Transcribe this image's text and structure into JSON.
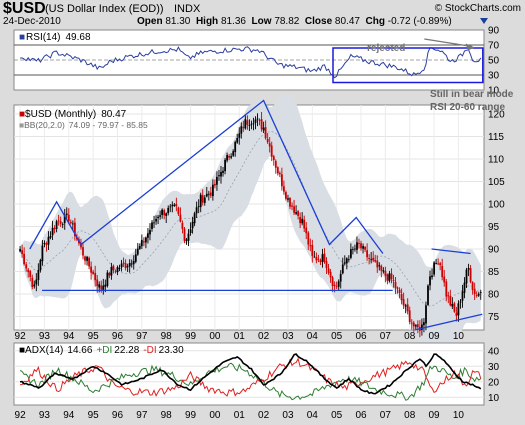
{
  "header": {
    "symbol": "$USD",
    "name": "(US Dollar Index (EOD))",
    "exchange": "INDX",
    "date": "24-Dec-2010",
    "open_label": "Open",
    "open": "81.30",
    "high_label": "High",
    "high": "81.36",
    "low_label": "Low",
    "low": "78.82",
    "close_label": "Close",
    "close": "80.47",
    "chg_label": "Chg",
    "chg": "-0.72 (-0.89%)",
    "watermark": "© StockCharts.com"
  },
  "colors": {
    "down": "#cc0000",
    "up": "#000000",
    "trend": "#1a3fd6",
    "rsi": "#2b3fa0",
    "adx": "#000000",
    "pdi": "#2e7d32",
    "mdi": "#e02020",
    "band": "#cfd6e0"
  },
  "rsi": {
    "label": "RSI(14)",
    "value": "49.68",
    "scale": [
      "90",
      "70",
      "50",
      "30",
      "10"
    ],
    "annotations": {
      "rejected": "rejected",
      "bear_mode_1": "Still in bear mode",
      "bear_mode_2": "RSI 20-60 range"
    }
  },
  "price": {
    "label": "$USD (Monthly)",
    "value": "80.47",
    "bb_label": "BB(20,2.0)",
    "bb_values": "74.09 - 79.97 - 85.85",
    "scale": [
      "120",
      "115",
      "110",
      "105",
      "100",
      "95",
      "90",
      "85",
      "80",
      "75"
    ]
  },
  "adx": {
    "label": "ADX(14)",
    "value": "14.66",
    "pdi_label": "+DI",
    "pdi_value": "22.28",
    "mdi_label": "-DI",
    "mdi_value": "23.30",
    "scale": [
      "40",
      "30",
      "20",
      "10"
    ]
  },
  "xaxis": {
    "years": [
      "92",
      "93",
      "94",
      "95",
      "96",
      "97",
      "98",
      "99",
      "00",
      "01",
      "02",
      "03",
      "04",
      "05",
      "06",
      "07",
      "08",
      "09",
      "10"
    ]
  },
  "chart_data": {
    "type": "candlestick",
    "title": "$USD (US Dollar Index (EOD)) INDX",
    "x": [
      "1992",
      "1993",
      "1994",
      "1995",
      "1996",
      "1997",
      "1998",
      "1999",
      "2000",
      "2001",
      "2002",
      "2003",
      "2004",
      "2005",
      "2006",
      "2007",
      "2008",
      "2009",
      "2010"
    ],
    "price_anchors": [
      [
        1992.0,
        90
      ],
      [
        1992.6,
        81
      ],
      [
        1992.9,
        90
      ],
      [
        1993.5,
        96
      ],
      [
        1994.0,
        97
      ],
      [
        1994.5,
        90
      ],
      [
        1995.3,
        81
      ],
      [
        1995.7,
        85
      ],
      [
        1996.5,
        87
      ],
      [
        1997.0,
        91
      ],
      [
        1997.7,
        98
      ],
      [
        1998.4,
        99
      ],
      [
        1998.8,
        92
      ],
      [
        1999.4,
        101
      ],
      [
        1999.9,
        103
      ],
      [
        2000.4,
        109
      ],
      [
        2000.9,
        114
      ],
      [
        2001.2,
        118
      ],
      [
        2001.6,
        119
      ],
      [
        2002.0,
        117
      ],
      [
        2002.6,
        107
      ],
      [
        2003.0,
        101
      ],
      [
        2003.6,
        96
      ],
      [
        2004.0,
        88
      ],
      [
        2004.5,
        88
      ],
      [
        2004.95,
        81
      ],
      [
        2005.4,
        88
      ],
      [
        2005.9,
        91
      ],
      [
        2006.3,
        88
      ],
      [
        2006.8,
        85
      ],
      [
        2007.3,
        83
      ],
      [
        2007.8,
        77
      ],
      [
        2008.25,
        72
      ],
      [
        2008.55,
        73
      ],
      [
        2008.8,
        84
      ],
      [
        2009.2,
        88
      ],
      [
        2009.5,
        80
      ],
      [
        2009.9,
        75
      ],
      [
        2010.4,
        86
      ],
      [
        2010.65,
        80
      ],
      [
        2010.98,
        80.47
      ]
    ],
    "bollinger_bands": {
      "period": 20,
      "stddev": 2.0,
      "lower": 74.09,
      "middle": 79.97,
      "upper": 85.85
    },
    "trendlines_price": [
      {
        "points": [
          [
            1992.4,
            90
          ],
          [
            1993.5,
            100.5
          ],
          [
            1994.5,
            91
          ],
          [
            2002.0,
            123
          ],
          [
            2004.7,
            91
          ],
          [
            2005.8,
            97
          ],
          [
            2006.9,
            89
          ]
        ]
      },
      {
        "points": [
          [
            1992.9,
            80.8
          ],
          [
            2007.3,
            80.8
          ]
        ]
      },
      {
        "points": [
          [
            2008.2,
            72
          ],
          [
            2010.98,
            75.5
          ]
        ]
      },
      {
        "points": [
          [
            2008.9,
            90
          ],
          [
            2010.5,
            89
          ]
        ]
      }
    ],
    "rsi_anchors": [
      [
        1992.0,
        55
      ],
      [
        1992.7,
        48
      ],
      [
        1993.5,
        60
      ],
      [
        1994.5,
        50
      ],
      [
        1995.3,
        38
      ],
      [
        1995.7,
        48
      ],
      [
        1996.5,
        55
      ],
      [
        1997.7,
        62
      ],
      [
        1998.5,
        64
      ],
      [
        1998.9,
        52
      ],
      [
        1999.5,
        60
      ],
      [
        2000.4,
        63
      ],
      [
        2001.2,
        65
      ],
      [
        2001.8,
        63
      ],
      [
        2002.6,
        44
      ],
      [
        2003.4,
        40
      ],
      [
        2004.0,
        35
      ],
      [
        2004.5,
        42
      ],
      [
        2004.95,
        28
      ],
      [
        2005.6,
        55
      ],
      [
        2006.3,
        48
      ],
      [
        2006.8,
        45
      ],
      [
        2007.5,
        40
      ],
      [
        2008.2,
        30
      ],
      [
        2008.6,
        40
      ],
      [
        2008.85,
        68
      ],
      [
        2009.3,
        62
      ],
      [
        2009.7,
        48
      ],
      [
        2010.1,
        55
      ],
      [
        2010.4,
        68
      ],
      [
        2010.6,
        50
      ],
      [
        2010.98,
        49.68
      ]
    ],
    "rsi_lines": {
      "upper": 70,
      "lower": 30
    },
    "adx_anchors": [
      [
        1992.0,
        20
      ],
      [
        1992.8,
        16
      ],
      [
        1993.4,
        25
      ],
      [
        1994.2,
        22
      ],
      [
        1995.0,
        30
      ],
      [
        1995.5,
        26
      ],
      [
        1996.2,
        18
      ],
      [
        1997.0,
        22
      ],
      [
        1997.8,
        28
      ],
      [
        1998.5,
        18
      ],
      [
        1999.0,
        15
      ],
      [
        1999.5,
        22
      ],
      [
        2000.3,
        32
      ],
      [
        2000.9,
        36
      ],
      [
        2001.5,
        28
      ],
      [
        2002.0,
        18
      ],
      [
        2002.7,
        25
      ],
      [
        2003.3,
        38
      ],
      [
        2003.8,
        33
      ],
      [
        2004.5,
        22
      ],
      [
        2005.0,
        16
      ],
      [
        2005.5,
        22
      ],
      [
        2006.0,
        15
      ],
      [
        2006.5,
        12
      ],
      [
        2007.2,
        18
      ],
      [
        2007.9,
        28
      ],
      [
        2008.4,
        35
      ],
      [
        2008.7,
        30
      ],
      [
        2009.0,
        38
      ],
      [
        2009.4,
        34
      ],
      [
        2009.8,
        26
      ],
      [
        2010.2,
        20
      ],
      [
        2010.6,
        18
      ],
      [
        2010.98,
        14.66
      ]
    ],
    "pdi_anchors": [
      [
        1992.0,
        25
      ],
      [
        1992.8,
        18
      ],
      [
        1993.5,
        28
      ],
      [
        1994.2,
        22
      ],
      [
        1995.0,
        14
      ],
      [
        1995.8,
        20
      ],
      [
        1996.5,
        25
      ],
      [
        1997.5,
        28
      ],
      [
        1998.3,
        24
      ],
      [
        1999.0,
        18
      ],
      [
        1999.7,
        26
      ],
      [
        2000.5,
        30
      ],
      [
        2001.2,
        28
      ],
      [
        2001.8,
        22
      ],
      [
        2002.6,
        12
      ],
      [
        2003.3,
        10
      ],
      [
        2004.0,
        12
      ],
      [
        2004.7,
        18
      ],
      [
        2005.3,
        22
      ],
      [
        2005.9,
        20
      ],
      [
        2006.6,
        15
      ],
      [
        2007.3,
        12
      ],
      [
        2008.0,
        10
      ],
      [
        2008.6,
        20
      ],
      [
        2008.9,
        30
      ],
      [
        2009.3,
        28
      ],
      [
        2009.8,
        22
      ],
      [
        2010.3,
        28
      ],
      [
        2010.6,
        22
      ],
      [
        2010.98,
        22.28
      ]
    ],
    "mdi_anchors": [
      [
        1992.0,
        18
      ],
      [
        1992.7,
        28
      ],
      [
        1993.5,
        15
      ],
      [
        1994.3,
        24
      ],
      [
        1995.2,
        30
      ],
      [
        1995.8,
        18
      ],
      [
        1996.5,
        14
      ],
      [
        1997.5,
        13
      ],
      [
        1998.4,
        16
      ],
      [
        1999.0,
        24
      ],
      [
        1999.7,
        16
      ],
      [
        2000.5,
        13
      ],
      [
        2001.2,
        14
      ],
      [
        2002.0,
        22
      ],
      [
        2002.7,
        30
      ],
      [
        2003.4,
        33
      ],
      [
        2004.0,
        28
      ],
      [
        2004.7,
        20
      ],
      [
        2005.3,
        16
      ],
      [
        2006.0,
        20
      ],
      [
        2006.6,
        24
      ],
      [
        2007.3,
        28
      ],
      [
        2008.0,
        33
      ],
      [
        2008.6,
        26
      ],
      [
        2008.9,
        14
      ],
      [
        2009.4,
        20
      ],
      [
        2009.8,
        26
      ],
      [
        2010.3,
        18
      ],
      [
        2010.6,
        26
      ],
      [
        2010.98,
        23.3
      ]
    ],
    "panels": {
      "rsi": {
        "ylim": [
          10,
          90
        ]
      },
      "price": {
        "ylim": [
          72,
          122
        ]
      },
      "adx": {
        "ylim": [
          5,
          45
        ]
      }
    }
  }
}
